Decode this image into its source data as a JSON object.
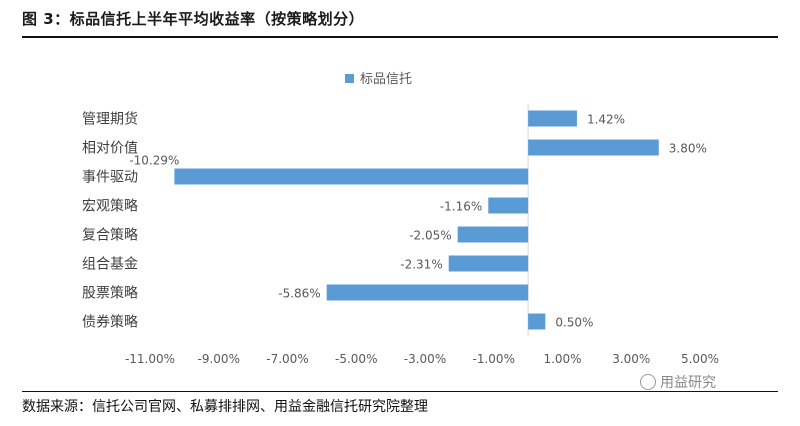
{
  "header": {
    "figure_title": "图 3：标品信托上半年平均收益率（按策略划分）"
  },
  "footer": {
    "source": "数据来源：信托公司官网、私募排排网、用益金融信托研究院整理",
    "watermark": "用益研究"
  },
  "chart_data": {
    "type": "bar",
    "orientation": "horizontal",
    "title": "",
    "xlabel": "",
    "ylabel": "",
    "legend": {
      "position": "top",
      "entries": [
        "标品信托"
      ]
    },
    "colors": {
      "bar": "#5b9bd5",
      "axis": "#d9d9d9",
      "text": "#595959"
    },
    "categories": [
      "管理期货",
      "相对价值",
      "事件驱动",
      "宏观策略",
      "复合策略",
      "组合基金",
      "股票策略",
      "债券策略"
    ],
    "series": [
      {
        "name": "标品信托",
        "values": [
          1.42,
          3.8,
          -10.29,
          -1.16,
          -2.05,
          -2.31,
          -5.86,
          0.5
        ],
        "labels": [
          "1.42%",
          "3.80%",
          "-10.29%",
          "-1.16%",
          "-2.05%",
          "-2.31%",
          "-5.86%",
          "0.50%"
        ]
      }
    ],
    "xlim": [
      -11.0,
      5.0
    ],
    "xticks": [
      -11,
      -9,
      -7,
      -5,
      -3,
      -1,
      1,
      3,
      5
    ],
    "xtick_labels": [
      "-11.00%",
      "-9.00%",
      "-7.00%",
      "-5.00%",
      "-3.00%",
      "-1.00%",
      "1.00%",
      "3.00%",
      "5.00%"
    ],
    "grid": false
  }
}
